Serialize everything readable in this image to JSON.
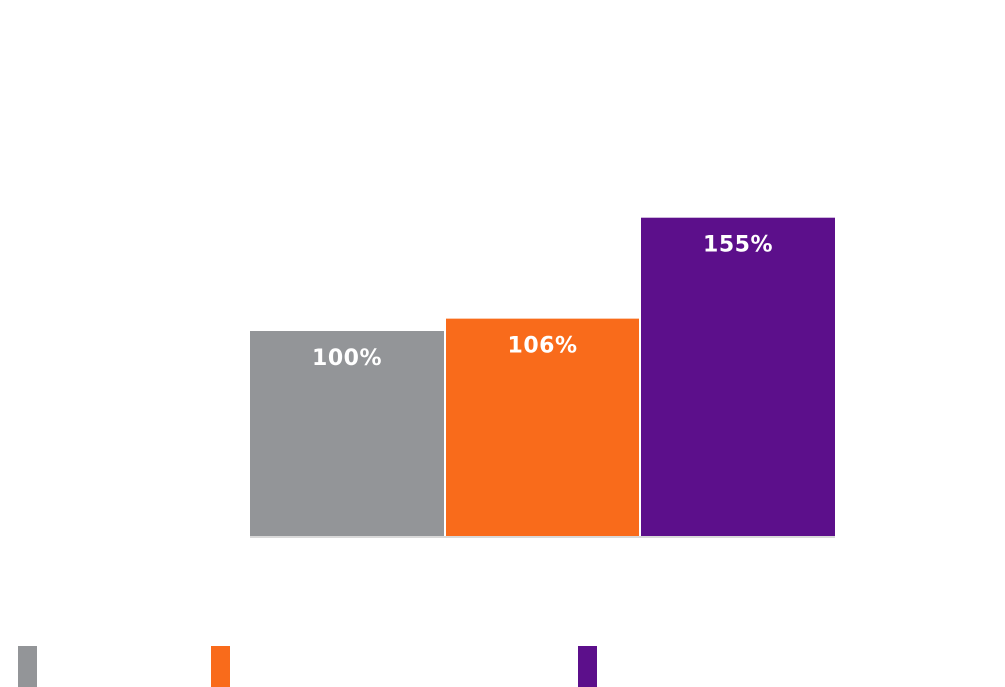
{
  "chart_data": {
    "type": "bar",
    "categories": [
      "",
      "",
      ""
    ],
    "values": [
      100,
      106,
      155
    ],
    "value_labels": [
      "100%",
      "106%",
      "155%"
    ],
    "colors": [
      "#939598",
      "#f96b1b",
      "#5c0f8b"
    ],
    "baseline_color": "#d9d9d9",
    "ylim": [
      0,
      160
    ],
    "grid": false,
    "legend": "bottom"
  },
  "legend": {
    "items": [
      {
        "label": "",
        "color": "#939598"
      },
      {
        "label": "",
        "color": "#f96b1b"
      },
      {
        "label": "",
        "color": "#5c0f8b"
      }
    ]
  }
}
